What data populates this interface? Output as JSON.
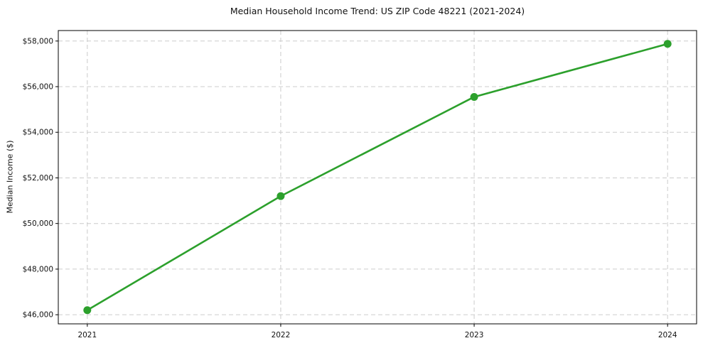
{
  "chart_data": {
    "type": "line",
    "title": "Median Household Income Trend: US ZIP Code 48221 (2021-2024)",
    "xlabel": "",
    "ylabel": "Median Income ($)",
    "categories": [
      "2021",
      "2022",
      "2023",
      "2024"
    ],
    "x": [
      2021,
      2022,
      2023,
      2024
    ],
    "values": [
      46200,
      51200,
      55550,
      57875
    ],
    "x_tick_labels": [
      "2021",
      "2022",
      "2023",
      "2024"
    ],
    "y_ticks": [
      46000,
      48000,
      50000,
      52000,
      54000,
      56000,
      58000
    ],
    "y_tick_labels": [
      "$46,000",
      "$48,000",
      "$50,000",
      "$52,000",
      "$54,000",
      "$56,000",
      "$58,000"
    ],
    "xlim": [
      2020.85,
      2024.15
    ],
    "ylim": [
      45600,
      58460
    ],
    "grid": "dashed",
    "grid_color": "#cccccc",
    "line_color": "#2ca02c",
    "marker": "circle",
    "marker_color": "#2ca02c",
    "frame_color": "#000000",
    "background": "#ffffff",
    "legend": "none"
  }
}
